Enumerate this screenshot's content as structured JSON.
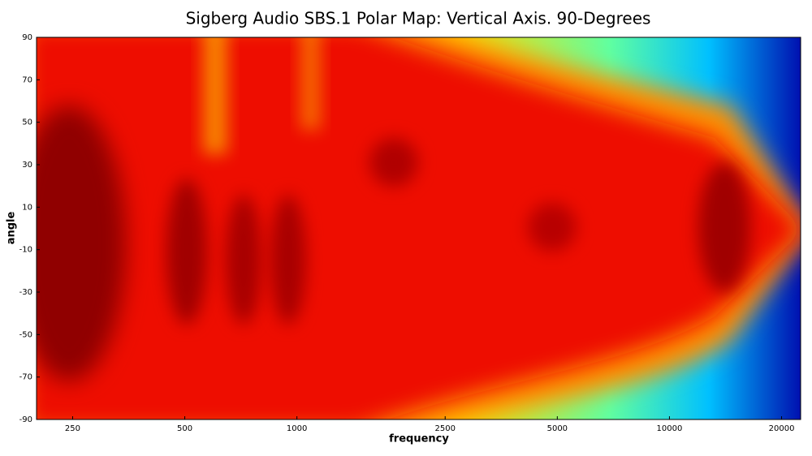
{
  "chart_data": {
    "type": "heatmap",
    "title": "Sigberg Audio SBS.1 Polar Map: Vertical Axis. 90-Degrees",
    "x_label": "frequency",
    "y_label": "angle",
    "xscale": "log",
    "xlim": [
      200,
      22500
    ],
    "xticks": [
      250,
      500,
      1000,
      2500,
      5000,
      10000,
      20000
    ],
    "ylim": [
      -90,
      90
    ],
    "yticks": [
      90,
      70,
      50,
      30,
      10,
      -10,
      -30,
      -50,
      -70,
      -90
    ]
  }
}
